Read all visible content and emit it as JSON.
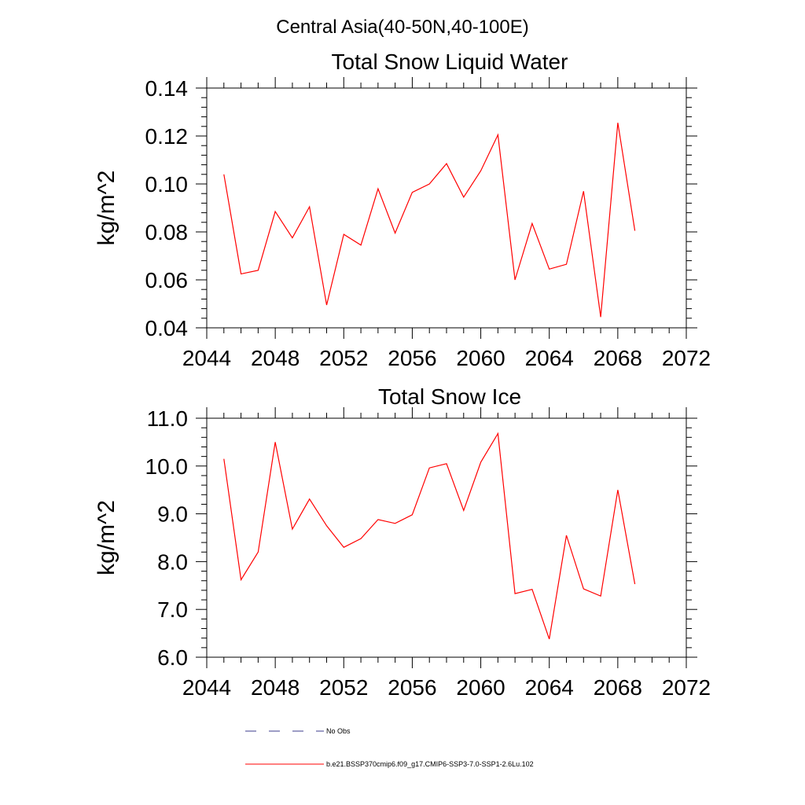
{
  "figure": {
    "suptitle": "Central Asia(40-50N,40-100E)"
  },
  "legend": {
    "placement": "bottom",
    "entries": [
      {
        "label": "No Obs",
        "color": "#3b3b8c",
        "style": "dashed"
      },
      {
        "label": "b.e21.BSSP370cmip6.f09_g17.CMIP6-SSP3-7.0-SSP1-2.6Lu.102",
        "color": "#ff0000",
        "style": "solid"
      }
    ]
  },
  "chart_data": [
    {
      "type": "line",
      "title": "Total Snow Liquid Water",
      "xlabel": "",
      "ylabel": "kg/m^2",
      "xlim": [
        2044,
        2072
      ],
      "ylim": [
        0.04,
        0.14
      ],
      "x_ticks": [
        2044,
        2048,
        2052,
        2056,
        2060,
        2064,
        2068,
        2072
      ],
      "x_tick_labels": [
        "2044",
        "2048",
        "2052",
        "2056",
        "2060",
        "2064",
        "2068",
        "2072"
      ],
      "y_ticks": [
        0.04,
        0.06,
        0.08,
        0.1,
        0.12,
        0.14
      ],
      "y_tick_labels": [
        "0.04",
        "0.06",
        "0.08",
        "0.10",
        "0.12",
        "0.14"
      ],
      "grid": false,
      "series": [
        {
          "color": "#ff0000",
          "x": [
            2045,
            2046,
            2047,
            2048,
            2049,
            2050,
            2051,
            2052,
            2053,
            2054,
            2055,
            2056,
            2057,
            2058,
            2059,
            2060,
            2061,
            2062,
            2063,
            2064,
            2065,
            2066,
            2067,
            2068,
            2069
          ],
          "y": [
            0.104,
            0.0625,
            0.064,
            0.0885,
            0.0775,
            0.0905,
            0.0495,
            0.079,
            0.0745,
            0.098,
            0.0795,
            0.0965,
            0.1,
            0.1085,
            0.0945,
            0.1055,
            0.1205,
            0.06,
            0.0835,
            0.0645,
            0.0665,
            0.097,
            0.0445,
            0.1255,
            0.0805
          ]
        }
      ]
    },
    {
      "type": "line",
      "title": "Total Snow Ice",
      "xlabel": "",
      "ylabel": "kg/m^2",
      "xlim": [
        2044,
        2072
      ],
      "ylim": [
        6.0,
        11.0
      ],
      "x_ticks": [
        2044,
        2048,
        2052,
        2056,
        2060,
        2064,
        2068,
        2072
      ],
      "x_tick_labels": [
        "2044",
        "2048",
        "2052",
        "2056",
        "2060",
        "2064",
        "2068",
        "2072"
      ],
      "y_ticks": [
        6.0,
        7.0,
        8.0,
        9.0,
        10.0,
        11.0
      ],
      "y_tick_labels": [
        "6.0",
        "7.0",
        "8.0",
        "9.0",
        "10.0",
        "11.0"
      ],
      "grid": false,
      "series": [
        {
          "color": "#ff0000",
          "x": [
            2045,
            2046,
            2047,
            2048,
            2049,
            2050,
            2051,
            2052,
            2053,
            2054,
            2055,
            2056,
            2057,
            2058,
            2059,
            2060,
            2061,
            2062,
            2063,
            2064,
            2065,
            2066,
            2067,
            2068,
            2069
          ],
          "y": [
            10.15,
            7.62,
            8.2,
            10.5,
            8.68,
            9.31,
            8.75,
            8.3,
            8.48,
            8.88,
            8.8,
            8.98,
            9.96,
            10.05,
            9.07,
            10.08,
            10.68,
            7.33,
            7.42,
            6.38,
            8.55,
            7.43,
            7.28,
            9.5,
            7.53
          ]
        }
      ]
    }
  ]
}
